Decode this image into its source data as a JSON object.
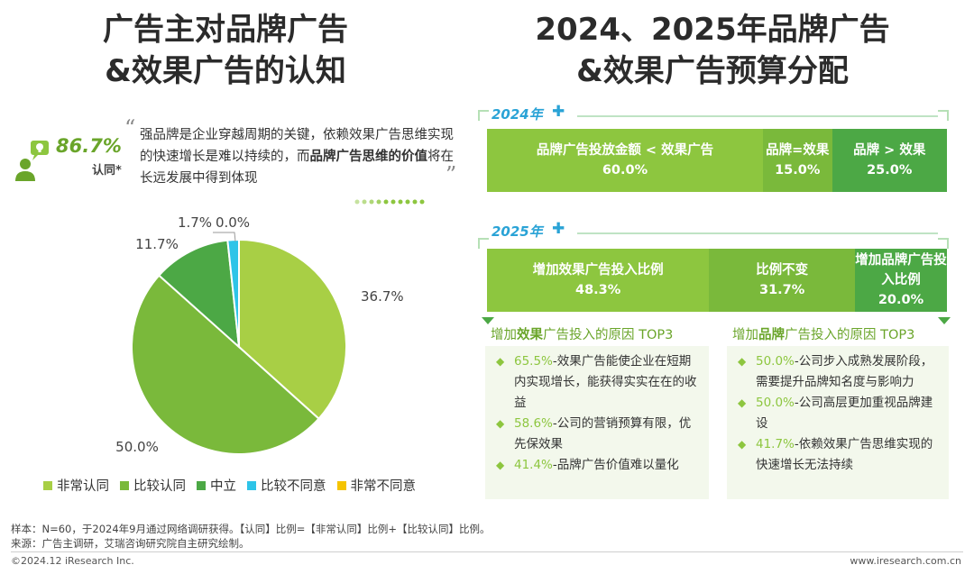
{
  "left": {
    "title_line1": "广告主对品牌广告",
    "title_line2": "&效果广告的认知",
    "stat_value": "86.7%",
    "stat_label": "认同*",
    "quote_part1": "强品牌是企业穿越周期的关键，依赖效果广告思维实现的快速增长是难以持续的，而",
    "quote_bold": "品牌广告思维的价值",
    "quote_part2": "将在长远发展中得到体现"
  },
  "right": {
    "title_line1": "2024、2025年品牌广告",
    "title_line2": "&效果广告预算分配",
    "year_2024": "2024年",
    "year_2025": "2025年",
    "bar_2024": [
      {
        "label": "品牌广告投放金额 < 效果广告",
        "value": "60.0%",
        "color": "#8dc63f"
      },
      {
        "label": "品牌=效果",
        "value": "15.0%",
        "color": "#7ab93b"
      },
      {
        "label": "品牌 > 效果",
        "value": "25.0%",
        "color": "#4ca845"
      }
    ],
    "bar_2025": [
      {
        "label": "增加效果广告投入比例",
        "value": "48.3%",
        "color": "#8dc63f"
      },
      {
        "label": "比例不变",
        "value": "31.7%",
        "color": "#7ab93b"
      },
      {
        "label": "增加品牌广告投入比例",
        "value": "20.0%",
        "color": "#4ca845"
      }
    ],
    "effect_reasons": {
      "title_pre": "增加",
      "title_bold": "效果",
      "title_post": "广告投入的原因 TOP3",
      "items": [
        {
          "pct": "65.5%",
          "text": "-效果广告能使企业在短期内实现增长，能获得实实在在的收益"
        },
        {
          "pct": "58.6%",
          "text": "-公司的营销预算有限，优先保效果"
        },
        {
          "pct": "41.4%",
          "text": "-品牌广告价值难以量化"
        }
      ]
    },
    "brand_reasons": {
      "title_pre": "增加",
      "title_bold": "品牌",
      "title_post": "广告投入的原因 TOP3",
      "items": [
        {
          "pct": "50.0%",
          "text": "-公司步入成熟发展阶段，需要提升品牌知名度与影响力"
        },
        {
          "pct": "50.0%",
          "text": "-公司高层更加重视品牌建设"
        },
        {
          "pct": "41.7%",
          "text": "-依赖效果广告思维实现的快速增长无法持续"
        }
      ]
    }
  },
  "footer": {
    "note1": "样本：N=60，于2024年9月通过网络调研获得。【认同】比例=【非常认同】比例+【比较认同】比例。",
    "note2": "来源：广告主调研，艾瑞咨询研究院自主研究绘制。",
    "copyright": "©2024.12 iResearch Inc.",
    "website": "www.iresearch.com.cn"
  },
  "chart_data": {
    "type": "pie",
    "title": "",
    "categories": [
      "非常认同",
      "比较认同",
      "中立",
      "比较不同意",
      "非常不同意"
    ],
    "values": [
      36.7,
      50.0,
      11.7,
      1.7,
      0.0
    ],
    "value_labels": [
      "36.7%",
      "50.0%",
      "11.7%",
      "1.7%",
      "0.0%"
    ],
    "colors": [
      "#a8cf45",
      "#7ab93b",
      "#4ca845",
      "#2ec4e8",
      "#f5c400"
    ],
    "legend_position": "bottom"
  }
}
